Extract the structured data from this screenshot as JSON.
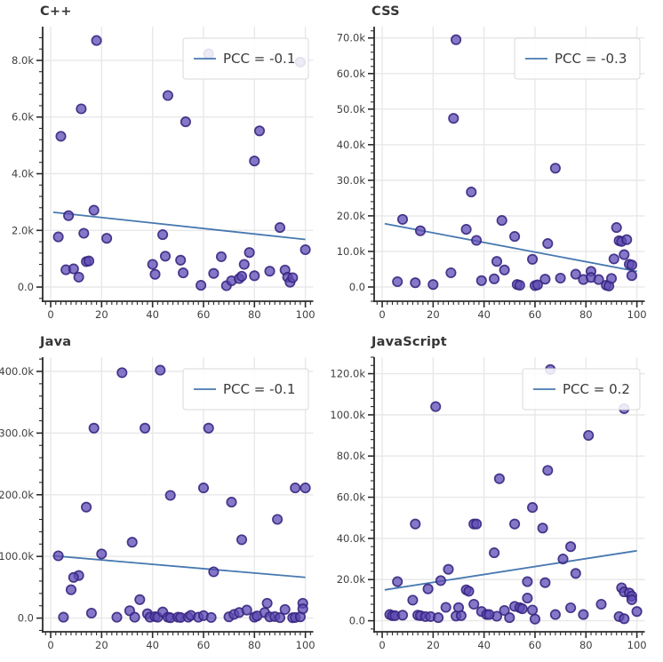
{
  "style": {
    "point_fill": "#5d4bb5",
    "point_edge": "#38267f",
    "trend_color": "#4678b0",
    "grid_color": "#e8e8e8",
    "axis_color": "#2b2b2b",
    "label_color": "#3f3f3f",
    "title_color": "#363636",
    "legend_text_color": "#3a3a3a",
    "background": "#ffffff"
  },
  "chart_data": [
    {
      "type": "scatter",
      "title": "C++",
      "legend": "PCC = -0.1",
      "xlabel": "",
      "ylabel": "",
      "x_ticks": [
        0,
        20,
        40,
        60,
        80,
        100
      ],
      "x_tick_labels": [
        "0",
        "20",
        "40",
        "60",
        "80",
        "100"
      ],
      "y_ticks": [
        0,
        2000,
        4000,
        6000,
        8000
      ],
      "y_tick_labels": [
        "0.0",
        "2.0k",
        "4.0k",
        "6.0k",
        "8.0k"
      ],
      "xlim": [
        -3.15,
        103.1
      ],
      "ylim": [
        -500,
        9190
      ],
      "x_minor_step": 2,
      "y_minor_step": 400,
      "trend": {
        "x": [
          1,
          100
        ],
        "y": [
          2640,
          1680
        ]
      },
      "points": [
        [
          4,
          5320
        ],
        [
          12,
          6290
        ],
        [
          18,
          8700
        ],
        [
          46,
          6760
        ],
        [
          53,
          5830
        ],
        [
          80,
          4450
        ],
        [
          82,
          5510
        ],
        [
          62,
          8230
        ],
        [
          98,
          7940
        ],
        [
          3,
          1770
        ],
        [
          7,
          2520
        ],
        [
          13,
          1900
        ],
        [
          17,
          2710
        ],
        [
          22,
          1720
        ],
        [
          44,
          1850
        ],
        [
          90,
          2100
        ],
        [
          100,
          1320
        ],
        [
          6,
          610
        ],
        [
          9,
          640
        ],
        [
          11,
          350
        ],
        [
          14,
          900
        ],
        [
          15,
          920
        ],
        [
          40,
          800
        ],
        [
          41,
          450
        ],
        [
          45,
          1090
        ],
        [
          51,
          950
        ],
        [
          52,
          500
        ],
        [
          59,
          60
        ],
        [
          64,
          480
        ],
        [
          67,
          1070
        ],
        [
          69,
          50
        ],
        [
          71,
          220
        ],
        [
          74,
          300
        ],
        [
          75,
          380
        ],
        [
          76,
          800
        ],
        [
          78,
          1220
        ],
        [
          80,
          400
        ],
        [
          86,
          560
        ],
        [
          92,
          600
        ],
        [
          93,
          350
        ],
        [
          94,
          170
        ],
        [
          95,
          330
        ]
      ]
    },
    {
      "type": "scatter",
      "title": "CSS",
      "legend": "PCC = -0.3",
      "xlabel": "",
      "ylabel": "",
      "x_ticks": [
        0,
        20,
        40,
        60,
        80,
        100
      ],
      "x_tick_labels": [
        "0",
        "20",
        "40",
        "60",
        "80",
        "100"
      ],
      "y_ticks": [
        0,
        10000,
        20000,
        30000,
        40000,
        50000,
        60000,
        70000
      ],
      "y_tick_labels": [
        "0.0",
        "10.0k",
        "20.0k",
        "30.0k",
        "40.0k",
        "50.0k",
        "60.0k",
        "70.0k"
      ],
      "xlim": [
        -3.15,
        103.1
      ],
      "ylim": [
        -4000,
        73180
      ],
      "x_minor_step": 2,
      "y_minor_step": 2000,
      "trend": {
        "x": [
          1,
          100
        ],
        "y": [
          17800,
          4400
        ]
      },
      "points": [
        [
          29,
          69500
        ],
        [
          28,
          47400
        ],
        [
          68,
          33400
        ],
        [
          35,
          26700
        ],
        [
          8,
          19000
        ],
        [
          47,
          18700
        ],
        [
          92,
          16700
        ],
        [
          33,
          16200
        ],
        [
          15,
          15800
        ],
        [
          52,
          14200
        ],
        [
          37,
          13100
        ],
        [
          93,
          13000
        ],
        [
          94,
          12800
        ],
        [
          96,
          13300
        ],
        [
          65,
          12200
        ],
        [
          95,
          9100
        ],
        [
          59,
          7800
        ],
        [
          91,
          7900
        ],
        [
          45,
          7200
        ],
        [
          97,
          6400
        ],
        [
          98,
          6200
        ],
        [
          48,
          4800
        ],
        [
          27,
          4000
        ],
        [
          76,
          3600
        ],
        [
          82,
          4400
        ],
        [
          98,
          3200
        ],
        [
          6,
          1500
        ],
        [
          13,
          1200
        ],
        [
          20,
          700
        ],
        [
          39,
          1800
        ],
        [
          44,
          2300
        ],
        [
          53,
          700
        ],
        [
          54,
          500
        ],
        [
          60,
          400
        ],
        [
          61,
          600
        ],
        [
          64,
          2200
        ],
        [
          70,
          2500
        ],
        [
          79,
          2100
        ],
        [
          82,
          2700
        ],
        [
          85,
          2100
        ],
        [
          88,
          500
        ],
        [
          89,
          300
        ],
        [
          90,
          2400
        ]
      ]
    },
    {
      "type": "scatter",
      "title": "Java",
      "legend": "PCC = -0.1",
      "xlabel": "",
      "ylabel": "",
      "x_ticks": [
        0,
        20,
        40,
        60,
        80,
        100
      ],
      "x_tick_labels": [
        "0",
        "20",
        "40",
        "60",
        "80",
        "100"
      ],
      "y_ticks": [
        0,
        100000,
        200000,
        300000,
        400000
      ],
      "y_tick_labels": [
        "0.0",
        "100.0k",
        "200.0k",
        "300.0k",
        "400.0k"
      ],
      "xlim": [
        -3.15,
        103.1
      ],
      "ylim": [
        -22200,
        423000
      ],
      "x_minor_step": 2,
      "y_minor_step": 20000,
      "trend": {
        "x": [
          1,
          100
        ],
        "y": [
          101000,
          66000
        ]
      },
      "points": [
        [
          28,
          398000
        ],
        [
          43,
          402000
        ],
        [
          17,
          308000
        ],
        [
          37,
          308000
        ],
        [
          62,
          308000
        ],
        [
          60,
          211000
        ],
        [
          96,
          211000
        ],
        [
          100,
          211000
        ],
        [
          47,
          199000
        ],
        [
          71,
          188000
        ],
        [
          14,
          180000
        ],
        [
          89,
          160000
        ],
        [
          75,
          127000
        ],
        [
          32,
          123000
        ],
        [
          3,
          101000
        ],
        [
          20,
          104000
        ],
        [
          64,
          75000
        ],
        [
          11,
          69000
        ],
        [
          9,
          66000
        ],
        [
          8,
          46000
        ],
        [
          35,
          30000
        ],
        [
          85,
          24000
        ],
        [
          99,
          24000
        ],
        [
          5,
          1500
        ],
        [
          16,
          8000
        ],
        [
          26,
          1500
        ],
        [
          31,
          12000
        ],
        [
          33,
          1500
        ],
        [
          38,
          7000
        ],
        [
          39,
          1500
        ],
        [
          41,
          2500
        ],
        [
          42,
          1500
        ],
        [
          44,
          10000
        ],
        [
          46,
          1500
        ],
        [
          47,
          500
        ],
        [
          50,
          1500
        ],
        [
          51,
          1000
        ],
        [
          54,
          1500
        ],
        [
          55,
          4500
        ],
        [
          58,
          1500
        ],
        [
          60,
          4000
        ],
        [
          63,
          1000
        ],
        [
          70,
          2000
        ],
        [
          72,
          6000
        ],
        [
          74,
          9000
        ],
        [
          77,
          13000
        ],
        [
          80,
          1500
        ],
        [
          81,
          3500
        ],
        [
          84,
          9000
        ],
        [
          86,
          2000
        ],
        [
          88,
          2500
        ],
        [
          90,
          700
        ],
        [
          92,
          14000
        ],
        [
          95,
          500
        ],
        [
          96,
          1000
        ],
        [
          98,
          2000
        ],
        [
          99,
          15000
        ]
      ]
    },
    {
      "type": "scatter",
      "title": "JavaScript",
      "legend": "PCC = 0.2",
      "xlabel": "",
      "ylabel": "",
      "x_ticks": [
        0,
        20,
        40,
        60,
        80,
        100
      ],
      "x_tick_labels": [
        "0",
        "20",
        "40",
        "60",
        "80",
        "100"
      ],
      "y_ticks": [
        0,
        20000,
        40000,
        60000,
        80000,
        100000,
        120000
      ],
      "y_tick_labels": [
        "0.0",
        "20.0k",
        "40.0k",
        "60.0k",
        "80.0k",
        "100.0k",
        "120.0k"
      ],
      "xlim": [
        -3.15,
        103.1
      ],
      "ylim": [
        -5360,
        128000
      ],
      "x_minor_step": 2,
      "y_minor_step": 4000,
      "trend": {
        "x": [
          1,
          100
        ],
        "y": [
          15000,
          34000
        ]
      },
      "points": [
        [
          66,
          122000
        ],
        [
          21,
          104000
        ],
        [
          81,
          90000
        ],
        [
          65,
          73000
        ],
        [
          46,
          69000
        ],
        [
          59,
          55000
        ],
        [
          13,
          47000
        ],
        [
          36,
          47000
        ],
        [
          37,
          47000
        ],
        [
          52,
          47000
        ],
        [
          63,
          45000
        ],
        [
          74,
          36000
        ],
        [
          44,
          33000
        ],
        [
          71,
          30000
        ],
        [
          26,
          25000
        ],
        [
          76,
          23000
        ],
        [
          23,
          19500
        ],
        [
          6,
          19000
        ],
        [
          57,
          19000
        ],
        [
          64,
          18500
        ],
        [
          18,
          15500
        ],
        [
          33,
          15000
        ],
        [
          34,
          14300
        ],
        [
          94,
          16000
        ],
        [
          95,
          14000
        ],
        [
          97,
          13500
        ],
        [
          98,
          12000
        ],
        [
          98,
          10200
        ],
        [
          57,
          11000
        ],
        [
          12,
          10000
        ],
        [
          36,
          8000
        ],
        [
          86,
          8000
        ],
        [
          25,
          6500
        ],
        [
          30,
          6400
        ],
        [
          52,
          7000
        ],
        [
          54,
          6400
        ],
        [
          55,
          5800
        ],
        [
          48,
          5000
        ],
        [
          100,
          4500
        ],
        [
          39,
          4500
        ],
        [
          41,
          3000
        ],
        [
          45,
          2200
        ],
        [
          3,
          3000
        ],
        [
          4,
          2500
        ],
        [
          5,
          2500
        ],
        [
          8,
          2700
        ],
        [
          14,
          2700
        ],
        [
          15,
          2500
        ],
        [
          17,
          2000
        ],
        [
          19,
          2000
        ],
        [
          22,
          1500
        ],
        [
          29,
          2300
        ],
        [
          31,
          2500
        ],
        [
          42,
          3000
        ],
        [
          50,
          1500
        ],
        [
          59,
          5200
        ],
        [
          60,
          800
        ],
        [
          68,
          3000
        ],
        [
          74,
          6300
        ],
        [
          79,
          3000
        ],
        [
          93,
          2000
        ],
        [
          95,
          1000
        ],
        [
          95,
          103000
        ]
      ]
    }
  ]
}
